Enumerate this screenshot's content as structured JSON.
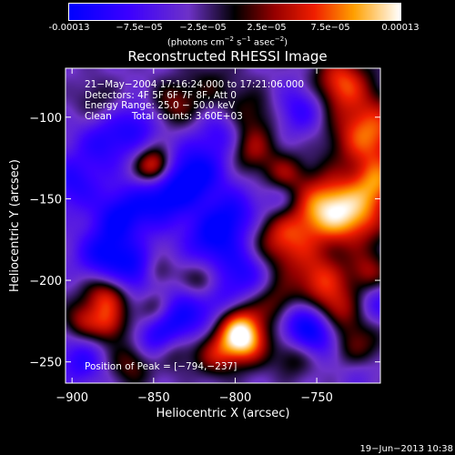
{
  "chart_data": {
    "type": "heatmap",
    "title": "Reconstructed RHESSI Image",
    "xlabel": "Heliocentric X (arcsec)",
    "ylabel": "Heliocentric Y (arcsec)",
    "x_ticks": [
      "-900",
      "-850",
      "-800",
      "-750"
    ],
    "x_tick_values": [
      -900,
      -850,
      -800,
      -750
    ],
    "y_ticks": [
      "-100",
      "-150",
      "-200",
      "-250"
    ],
    "y_tick_values": [
      -100,
      -150,
      -200,
      -250
    ],
    "xlim": [
      -904,
      -711
    ],
    "ylim": [
      -263,
      -70
    ],
    "colorbar": {
      "ticks": [
        "-0.00013",
        "−7.5e−05",
        "−2.5e−05",
        "2.5e−05",
        "7.5e−05",
        "0.00013"
      ],
      "tick_values": [
        -0.00013,
        -7.5e-05,
        -2.5e-05,
        2.5e-05,
        7.5e-05,
        0.00013
      ],
      "range": [
        -0.00013,
        0.00013
      ],
      "unit_prefix": "(photons cm",
      "unit_exp1": "−2",
      "unit_mid": " s",
      "unit_exp2": "−1",
      "unit_mid2": " asec",
      "unit_exp3": "−2",
      "unit_suffix": ")"
    },
    "annotations": {
      "line1": "21−May−2004 17:16:24.000 to 17:21:06.000",
      "line2": "Detectors: 4F 5F 6F 7F 8F, Att 0",
      "line3": "Energy Range: 25.0 − 50.0 keV",
      "line4_a": "Clean",
      "line4_b": "Total counts: 3.60E+03",
      "peak": "Position of Peak = [−794,−237]"
    },
    "peak_position": [
      -794,
      -237
    ],
    "blobs": [
      {
        "x": -718,
        "y": -110,
        "v": 1.0,
        "s": 16
      },
      {
        "x": -735,
        "y": -78,
        "v": 0.85,
        "s": 12
      },
      {
        "x": -712,
        "y": -140,
        "v": 0.7,
        "s": 10
      },
      {
        "x": -745,
        "y": -155,
        "v": 1.0,
        "s": 14
      },
      {
        "x": -725,
        "y": -160,
        "v": 0.85,
        "s": 14
      },
      {
        "x": -770,
        "y": -175,
        "v": 0.8,
        "s": 14
      },
      {
        "x": -748,
        "y": -200,
        "v": 0.75,
        "s": 12
      },
      {
        "x": -738,
        "y": -218,
        "v": 0.6,
        "s": 10
      },
      {
        "x": -773,
        "y": -215,
        "v": 0.6,
        "s": 10
      },
      {
        "x": -790,
        "y": -120,
        "v": 0.55,
        "s": 10
      },
      {
        "x": -770,
        "y": -135,
        "v": 0.55,
        "s": 9
      },
      {
        "x": -718,
        "y": -195,
        "v": 0.55,
        "s": 9
      },
      {
        "x": -727,
        "y": -240,
        "v": 0.6,
        "s": 12
      },
      {
        "x": -765,
        "y": -248,
        "v": 0.4,
        "s": 9
      },
      {
        "x": -794,
        "y": -237,
        "v": 1.15,
        "s": 10
      },
      {
        "x": -800,
        "y": -225,
        "v": 0.7,
        "s": 10
      },
      {
        "x": -812,
        "y": -245,
        "v": 0.6,
        "s": 10
      },
      {
        "x": -838,
        "y": -243,
        "v": 0.55,
        "s": 9
      },
      {
        "x": -862,
        "y": -250,
        "v": 0.6,
        "s": 10
      },
      {
        "x": -820,
        "y": -200,
        "v": 0.45,
        "s": 8
      },
      {
        "x": -848,
        "y": -195,
        "v": 0.45,
        "s": 7
      },
      {
        "x": -850,
        "y": -130,
        "v": 1.0,
        "s": 8
      },
      {
        "x": -838,
        "y": -92,
        "v": 0.5,
        "s": 10
      },
      {
        "x": -880,
        "y": -210,
        "v": 0.8,
        "s": 10
      },
      {
        "x": -878,
        "y": -228,
        "v": 0.6,
        "s": 8
      },
      {
        "x": -895,
        "y": -225,
        "v": 0.5,
        "s": 8
      },
      {
        "x": -850,
        "y": -218,
        "v": 0.45,
        "s": 8
      },
      {
        "x": -885,
        "y": -90,
        "v": 0.3,
        "s": 10
      },
      {
        "x": -790,
        "y": -98,
        "v": 0.4,
        "s": 12
      },
      {
        "x": -815,
        "y": -80,
        "v": 0.3,
        "s": 12
      },
      {
        "x": -870,
        "y": -160,
        "v": -0.7,
        "s": 12
      },
      {
        "x": -880,
        "y": -185,
        "v": -0.75,
        "s": 12
      },
      {
        "x": -860,
        "y": -195,
        "v": -0.6,
        "s": 10
      },
      {
        "x": -825,
        "y": -135,
        "v": -0.85,
        "s": 13
      },
      {
        "x": -845,
        "y": -150,
        "v": -0.7,
        "s": 12
      },
      {
        "x": -815,
        "y": -175,
        "v": -0.7,
        "s": 12
      },
      {
        "x": -800,
        "y": -160,
        "v": -0.6,
        "s": 11
      },
      {
        "x": -835,
        "y": -225,
        "v": -0.75,
        "s": 12
      },
      {
        "x": -850,
        "y": -240,
        "v": -0.6,
        "s": 10
      },
      {
        "x": -895,
        "y": -250,
        "v": -0.5,
        "s": 10
      },
      {
        "x": -760,
        "y": -225,
        "v": -0.75,
        "s": 11
      },
      {
        "x": -745,
        "y": -235,
        "v": -0.55,
        "s": 10
      },
      {
        "x": -795,
        "y": -195,
        "v": -0.6,
        "s": 11
      },
      {
        "x": -880,
        "y": -115,
        "v": -0.55,
        "s": 12
      },
      {
        "x": -860,
        "y": -105,
        "v": -0.45,
        "s": 10
      },
      {
        "x": -808,
        "y": -110,
        "v": -0.45,
        "s": 10
      },
      {
        "x": -760,
        "y": -95,
        "v": -0.5,
        "s": 11
      },
      {
        "x": -772,
        "y": -150,
        "v": -0.4,
        "s": 9
      },
      {
        "x": -810,
        "y": -215,
        "v": -0.5,
        "s": 10
      },
      {
        "x": -900,
        "y": -140,
        "v": -0.55,
        "s": 12
      },
      {
        "x": -712,
        "y": -215,
        "v": -0.4,
        "s": 9
      },
      {
        "x": -725,
        "y": -255,
        "v": -0.3,
        "s": 9
      }
    ]
  },
  "footer": {
    "timestamp": "19−Jun−2013 10:38"
  }
}
